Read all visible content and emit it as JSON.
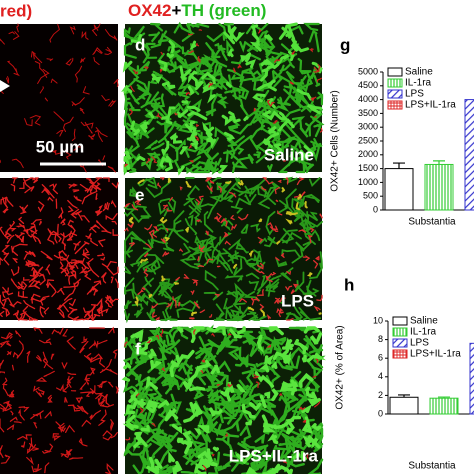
{
  "header": {
    "left": "red)",
    "right": [
      "OX42",
      "+",
      "TH (green)"
    ]
  },
  "scale_bar": "50 µm",
  "panels": [
    {
      "letter": "d",
      "label": "Saline"
    },
    {
      "letter": "e",
      "label": "LPS"
    },
    {
      "letter": "f",
      "label": "LPS+IL-1ra"
    }
  ],
  "chart_data": [
    {
      "type": "bar",
      "panel": "g",
      "ylabel": "OX42+ Cells (Number)",
      "xlabel": "Substantia",
      "ylim": [
        0,
        5000
      ],
      "yticks": [
        0,
        500,
        1000,
        1500,
        2000,
        2500,
        3000,
        3500,
        4000,
        4500,
        5000
      ],
      "series": [
        {
          "name": "Saline",
          "color": "#000000",
          "pattern": "none",
          "values": [
            1500
          ],
          "errors": [
            200
          ]
        },
        {
          "name": "IL-1ra",
          "color": "#33cc33",
          "pattern": "vertical",
          "values": [
            1650
          ],
          "errors": [
            130
          ]
        },
        {
          "name": "LPS",
          "color": "#3333cc",
          "pattern": "diagonal",
          "values": [
            4000
          ],
          "errors": [
            null
          ]
        },
        {
          "name": "LPS+IL-1ra",
          "color": "#dd2222",
          "pattern": "grid",
          "values": [
            null
          ],
          "errors": [
            null
          ]
        }
      ]
    },
    {
      "type": "bar",
      "panel": "h",
      "ylabel": "OX42+ (% of Area)",
      "xlabel": "Substantia",
      "ylim": [
        0,
        10
      ],
      "yticks": [
        0,
        2,
        4,
        6,
        8,
        10
      ],
      "series": [
        {
          "name": "Saline",
          "color": "#000000",
          "pattern": "none",
          "values": [
            1.8
          ],
          "errors": [
            0.25
          ]
        },
        {
          "name": "IL-1ra",
          "color": "#33cc33",
          "pattern": "vertical",
          "values": [
            1.7
          ],
          "errors": [
            0.12
          ]
        },
        {
          "name": "LPS",
          "color": "#3333cc",
          "pattern": "diagonal",
          "values": [
            7.6
          ],
          "errors": [
            null
          ]
        },
        {
          "name": "LPS+IL-1ra",
          "color": "#dd2222",
          "pattern": "grid",
          "values": [
            null
          ],
          "errors": [
            null
          ]
        }
      ]
    }
  ]
}
